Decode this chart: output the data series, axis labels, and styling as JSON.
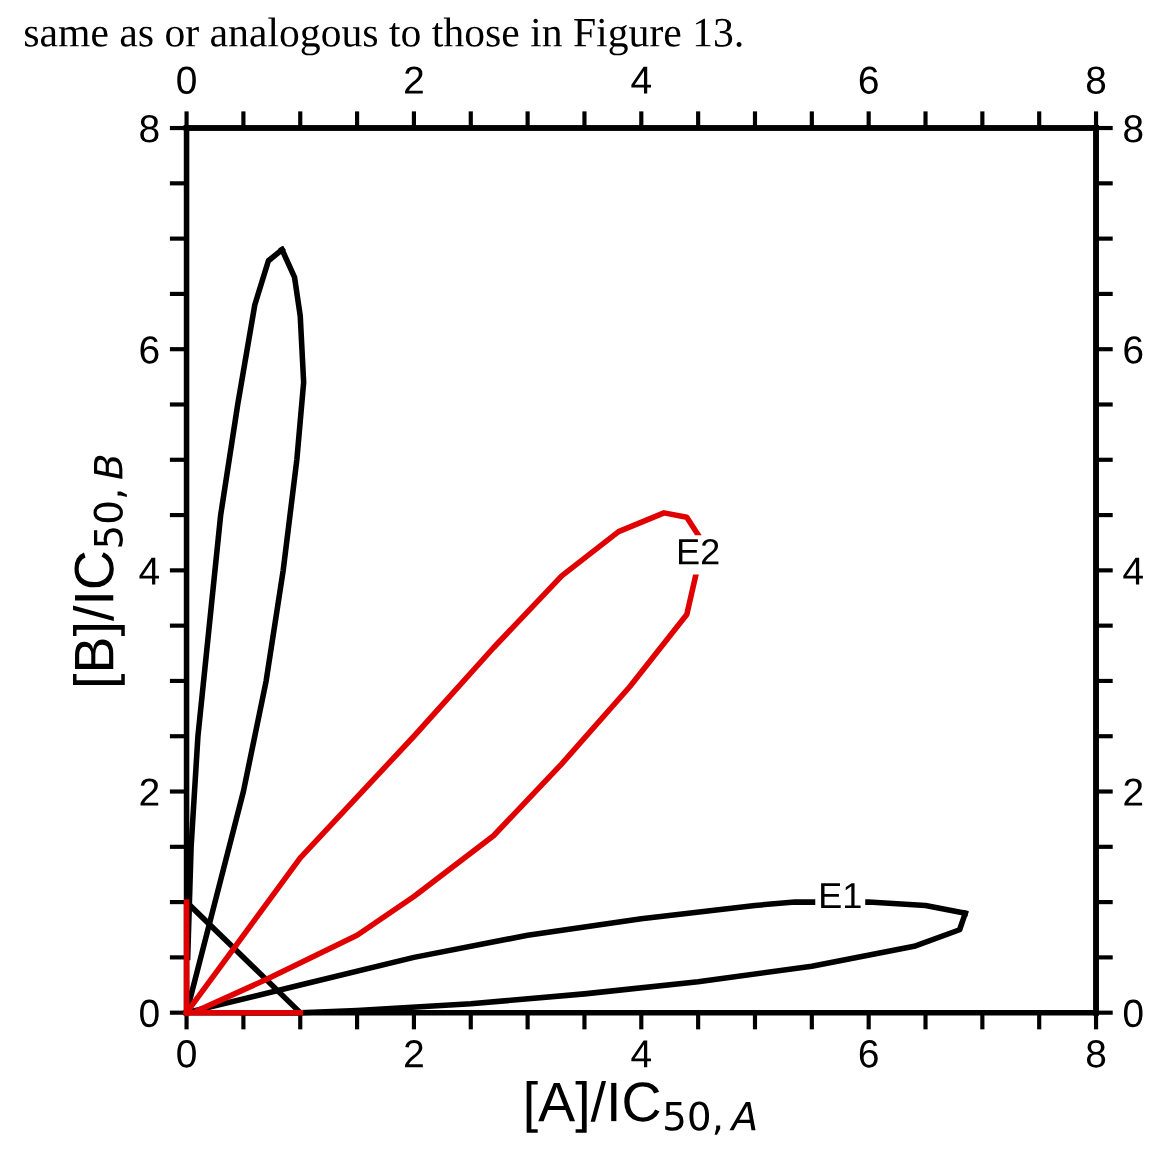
{
  "chart_data": {
    "type": "line",
    "xlabel": "[A]/IC$_{50,A}$",
    "ylabel": "[B]/IC$_{50,B}$",
    "xlim": [
      0,
      8
    ],
    "ylim": [
      0,
      8
    ],
    "x2lim": [
      0,
      8
    ],
    "y2lim": [
      0,
      8
    ],
    "xticks": [
      0,
      {
        "value": 0.5,
        "label": null
      },
      {
        "value": 1,
        "label": null
      },
      {
        "value": 1.5,
        "label": null
      },
      2,
      {
        "value": 2.5,
        "label": null
      },
      {
        "value": 3,
        "label": null
      },
      {
        "value": 3.5,
        "label": null
      },
      4,
      {
        "value": 4.5,
        "label": null
      },
      {
        "value": 5,
        "label": null
      },
      {
        "value": 5.5,
        "label": null
      },
      6,
      {
        "value": 6.5,
        "label": null
      },
      {
        "value": 7,
        "label": null
      },
      {
        "value": 7.5,
        "label": null
      },
      8
    ],
    "yticks": [
      0,
      {
        "value": 0.5,
        "label": null
      },
      {
        "value": 1,
        "label": null
      },
      {
        "value": 1.5,
        "label": null
      },
      2,
      {
        "value": 2.5,
        "label": null
      },
      {
        "value": 3,
        "label": null
      },
      {
        "value": 3.5,
        "label": null
      },
      4,
      {
        "value": 4.5,
        "label": null
      },
      {
        "value": 5,
        "label": null
      },
      {
        "value": 5.5,
        "label": null
      },
      6,
      {
        "value": 6.5,
        "label": null
      },
      {
        "value": 7,
        "label": null
      },
      {
        "value": 7.5,
        "label": null
      },
      8
    ],
    "x2ticks": [
      0,
      {
        "value": 0.5,
        "label": null
      },
      {
        "value": 1,
        "label": null
      },
      {
        "value": 1.5,
        "label": null
      },
      2,
      {
        "value": 2.5,
        "label": null
      },
      {
        "value": 3,
        "label": null
      },
      {
        "value": 3.5,
        "label": null
      },
      4,
      {
        "value": 4.5,
        "label": null
      },
      {
        "value": 5,
        "label": null
      },
      {
        "value": 5.5,
        "label": null
      },
      6,
      {
        "value": 6.5,
        "label": null
      },
      {
        "value": 7,
        "label": null
      },
      {
        "value": 7.5,
        "label": null
      },
      8
    ],
    "y2ticks": [
      0,
      {
        "value": 0.5,
        "label": null
      },
      {
        "value": 1,
        "label": null
      },
      {
        "value": 1.5,
        "label": null
      },
      2,
      {
        "value": 2.5,
        "label": null
      },
      {
        "value": 3,
        "label": null
      },
      {
        "value": 3.5,
        "label": null
      },
      4,
      {
        "value": 4.5,
        "label": null
      },
      {
        "value": 5,
        "label": null
      },
      {
        "value": 5.5,
        "label": null
      },
      6,
      {
        "value": 6.5,
        "label": null
      },
      {
        "value": 7,
        "label": null
      },
      {
        "value": 7.5,
        "label": null
      },
      8
    ],
    "grid": false,
    "legend": false,
    "marker": "none",
    "line_style": "solid",
    "series": [
      {
        "color": "#000000",
        "x": [
          0,
          1,
          2,
          3,
          4,
          5,
          5.35,
          6.0,
          6.5,
          6.85
        ],
        "values": [
          0,
          0.25,
          0.5,
          0.7,
          0.85,
          0.97,
          1.0,
          1.0,
          0.97,
          0.9
        ]
      },
      {
        "color": "#000000",
        "x": [
          6.85,
          6.8,
          6.4,
          5.5,
          4.5,
          3.5,
          2.5,
          1.5,
          1,
          0.5
        ],
        "values": [
          0.9,
          0.75,
          0.6,
          0.42,
          0.28,
          0.17,
          0.08,
          0.02,
          0,
          0
        ]
      },
      {
        "color": "#000000",
        "x": [
          0.01,
          0.04,
          0.1,
          0.2,
          0.3,
          0.45,
          0.6,
          0.72,
          0.84
        ],
        "values": [
          0.5,
          1.5,
          2.5,
          3.5,
          4.5,
          5.5,
          6.4,
          6.8,
          6.9
        ]
      },
      {
        "color": "#000000",
        "x": [
          0.84,
          0.95,
          1.0,
          1.03,
          0.97,
          0.85,
          0.7,
          0.5,
          0.25,
          0
        ],
        "values": [
          6.9,
          6.65,
          6.3,
          5.7,
          5,
          4,
          3,
          2,
          1,
          0
        ]
      },
      {
        "color": "#000000",
        "x": [
          0,
          1
        ],
        "values": [
          1,
          0
        ]
      },
      {
        "color": "#e00000",
        "x": [
          0,
          0.5,
          1,
          2,
          2.7,
          3.3,
          3.8,
          4.2,
          4.4,
          4.5
        ],
        "values": [
          0,
          0.7,
          1.4,
          2.5,
          3.3,
          3.95,
          4.35,
          4.52,
          4.48,
          4.32
        ]
      },
      {
        "color": "#e00000",
        "x": [
          4.48,
          4.4,
          3.9,
          3.3,
          2.7,
          2,
          1.5,
          0.7,
          0.1
        ],
        "values": [
          3.96,
          3.6,
          2.95,
          2.25,
          1.6,
          1.05,
          0.7,
          0.3,
          0.02
        ]
      },
      {
        "color": "#e00000",
        "x": [
          0,
          0
        ],
        "values": [
          1,
          0
        ]
      },
      {
        "color": "#e00000",
        "x": [
          0,
          1
        ],
        "values": [
          0,
          0
        ]
      }
    ],
    "annotations": [
      "same as or analogous to those in Figure 13.",
      {
        "text": "E1",
        "x": 5.75,
        "y": 1.03
      },
      {
        "text": "E2",
        "x": 4.5,
        "y": 4.14
      }
    ]
  }
}
